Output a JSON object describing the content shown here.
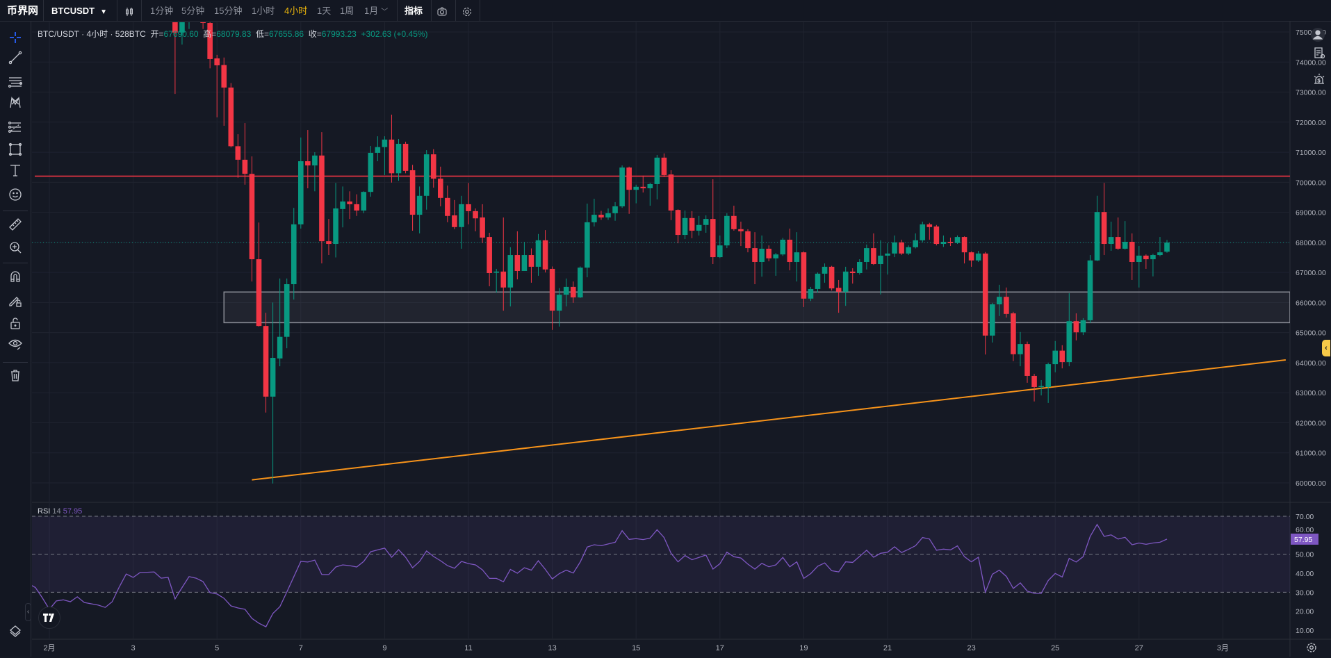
{
  "topbar": {
    "logo": "币界网",
    "symbol": "BTCUSDT",
    "intervals": [
      "1分钟",
      "5分钟",
      "15分钟",
      "1小时",
      "4小时",
      "1天",
      "1周",
      "1月"
    ],
    "active_interval": "4小时",
    "indicators_label": "指标"
  },
  "legend": {
    "title": "BTC/USDT · 4小时 · 528BTC",
    "open_label": "开=",
    "open": "67690.60",
    "high_label": "高=",
    "high": "68079.83",
    "low_label": "低=",
    "low": "67655.86",
    "close_label": "收=",
    "close": "67993.23",
    "change": "+302.63 (+0.45%)"
  },
  "rsi_legend": {
    "name": "RSI",
    "period": "14",
    "value": "57.95"
  },
  "colors": {
    "up": "#089981",
    "down": "#f23645",
    "resistance": "#c9303e",
    "trendline": "#f7931a",
    "rsi": "#7e57c2",
    "active": "#f0b90b",
    "crosshair_tool": "#2962ff"
  },
  "chart_data": {
    "type": "candlestick",
    "symbol": "BTC/USDT",
    "interval_hours": 4,
    "index_origin": "2月1日 00:00",
    "candles_start_index": 18,
    "candles_ohlc": [
      [
        75800,
        76200,
        72940,
        74980
      ],
      [
        74980,
        75900,
        74580,
        75500
      ],
      [
        75500,
        76300,
        75100,
        76000
      ],
      [
        76000,
        76500,
        75400,
        75700
      ],
      [
        75700,
        75900,
        75100,
        75300
      ],
      [
        75300,
        75500,
        73790,
        74100
      ],
      [
        74120,
        74240,
        72160,
        73890
      ],
      [
        73900,
        74150,
        71880,
        73150
      ],
      [
        73150,
        73300,
        71160,
        71200
      ],
      [
        71200,
        71600,
        70150,
        70750
      ],
      [
        70750,
        71970,
        69920,
        70280
      ],
      [
        70280,
        70860,
        66700,
        67440
      ],
      [
        67440,
        68660,
        65200,
        65220
      ],
      [
        65220,
        65660,
        62340,
        62870
      ],
      [
        62870,
        66000,
        59980,
        64160
      ],
      [
        64140,
        66800,
        63880,
        64860
      ],
      [
        64860,
        66800,
        64480,
        66610
      ],
      [
        66610,
        69150,
        66100,
        68600
      ],
      [
        68600,
        71490,
        68460,
        70700
      ],
      [
        70700,
        71740,
        69800,
        70560
      ],
      [
        70560,
        71000,
        69700,
        70890
      ],
      [
        70890,
        71670,
        67300,
        68040
      ],
      [
        68040,
        68780,
        67580,
        67950
      ],
      [
        67950,
        69980,
        67500,
        69130
      ],
      [
        69110,
        69860,
        68500,
        69360
      ],
      [
        69360,
        69700,
        68780,
        69270
      ],
      [
        69270,
        69600,
        68880,
        69060
      ],
      [
        69060,
        69700,
        68970,
        69680
      ],
      [
        69680,
        71210,
        69520,
        70980
      ],
      [
        70980,
        71530,
        70700,
        71170
      ],
      [
        71170,
        71530,
        70240,
        71420
      ],
      [
        71420,
        72250,
        69990,
        70300
      ],
      [
        70300,
        71440,
        70050,
        71280
      ],
      [
        71280,
        71350,
        70300,
        70380
      ],
      [
        70400,
        70580,
        68390,
        68920
      ],
      [
        68920,
        69860,
        68300,
        69550
      ],
      [
        69550,
        71070,
        69090,
        70930
      ],
      [
        70930,
        71100,
        69820,
        70120
      ],
      [
        70120,
        70520,
        69200,
        69480
      ],
      [
        69480,
        69890,
        68670,
        68880
      ],
      [
        68900,
        69410,
        68440,
        68510
      ],
      [
        68510,
        69550,
        67790,
        69270
      ],
      [
        69270,
        69980,
        68600,
        69040
      ],
      [
        69040,
        69130,
        68370,
        68800
      ],
      [
        68830,
        69270,
        67980,
        68160
      ],
      [
        68180,
        68320,
        66540,
        66980
      ],
      [
        66990,
        67120,
        66330,
        67030
      ],
      [
        67030,
        68830,
        65730,
        66500
      ],
      [
        66500,
        67840,
        65870,
        67580
      ],
      [
        67580,
        68370,
        66770,
        67050
      ],
      [
        67050,
        68020,
        67050,
        67580
      ],
      [
        67580,
        67800,
        66660,
        67190
      ],
      [
        67190,
        68280,
        66890,
        68070
      ],
      [
        68070,
        68410,
        67000,
        67100
      ],
      [
        67120,
        67200,
        65090,
        65730
      ],
      [
        65730,
        66480,
        65200,
        66260
      ],
      [
        66260,
        66800,
        65870,
        66520
      ],
      [
        66520,
        66700,
        65990,
        66170
      ],
      [
        66170,
        67200,
        66150,
        67160
      ],
      [
        67160,
        69290,
        66840,
        68670
      ],
      [
        68670,
        69450,
        68530,
        68920
      ],
      [
        68920,
        69050,
        68750,
        68830
      ],
      [
        68830,
        69130,
        68750,
        68970
      ],
      [
        68970,
        69340,
        68720,
        69200
      ],
      [
        69200,
        70560,
        69150,
        70490
      ],
      [
        70490,
        70520,
        68950,
        69750
      ],
      [
        69750,
        69920,
        69300,
        69850
      ],
      [
        69850,
        70220,
        69660,
        69800
      ],
      [
        69800,
        69985,
        69220,
        69940
      ],
      [
        69940,
        70910,
        69430,
        70820
      ],
      [
        70820,
        70960,
        70170,
        70240
      ],
      [
        70260,
        70400,
        68740,
        69060
      ],
      [
        69080,
        69100,
        67970,
        68250
      ],
      [
        68250,
        69060,
        68110,
        68810
      ],
      [
        68810,
        69040,
        68140,
        68390
      ],
      [
        68390,
        68880,
        68230,
        68580
      ],
      [
        68580,
        68900,
        68320,
        68780
      ],
      [
        68780,
        70100,
        67280,
        67510
      ],
      [
        67510,
        68230,
        67480,
        67900
      ],
      [
        67900,
        68970,
        67810,
        68880
      ],
      [
        68880,
        69220,
        68390,
        68440
      ],
      [
        68440,
        68690,
        67880,
        68370
      ],
      [
        68370,
        68440,
        67670,
        67810
      ],
      [
        67810,
        68340,
        66610,
        67350
      ],
      [
        67350,
        68230,
        66860,
        67790
      ],
      [
        67790,
        67900,
        67370,
        67470
      ],
      [
        67470,
        67650,
        66890,
        67600
      ],
      [
        67600,
        68150,
        67550,
        68090
      ],
      [
        68090,
        68460,
        67070,
        67350
      ],
      [
        67350,
        68340,
        66700,
        67670
      ],
      [
        67670,
        67700,
        65850,
        66130
      ],
      [
        66130,
        66520,
        66050,
        66450
      ],
      [
        66450,
        67000,
        66330,
        66960
      ],
      [
        66960,
        67300,
        66660,
        67190
      ],
      [
        67190,
        67220,
        66400,
        66470
      ],
      [
        66490,
        66750,
        65660,
        66360
      ],
      [
        66360,
        67190,
        65890,
        67030
      ],
      [
        67030,
        67140,
        66630,
        66980
      ],
      [
        66980,
        67440,
        66930,
        67350
      ],
      [
        67350,
        67930,
        67100,
        67810
      ],
      [
        67810,
        68300,
        67250,
        67280
      ],
      [
        67280,
        68070,
        66270,
        67560
      ],
      [
        67560,
        67970,
        66930,
        67630
      ],
      [
        67630,
        68230,
        67510,
        68000
      ],
      [
        68000,
        68090,
        67580,
        67630
      ],
      [
        67630,
        67900,
        67580,
        67840
      ],
      [
        67840,
        68300,
        67800,
        68070
      ],
      [
        68070,
        68690,
        68000,
        68600
      ],
      [
        68600,
        68650,
        68090,
        68510
      ],
      [
        68530,
        68580,
        67900,
        67950
      ],
      [
        67950,
        68230,
        67850,
        68020
      ],
      [
        68020,
        68160,
        67880,
        67980
      ],
      [
        67980,
        68230,
        67950,
        68180
      ],
      [
        68180,
        68200,
        67300,
        67670
      ],
      [
        67670,
        67700,
        67190,
        67400
      ],
      [
        67400,
        67720,
        67350,
        67630
      ],
      [
        67630,
        67680,
        64270,
        64900
      ],
      [
        64900,
        65990,
        64670,
        65940
      ],
      [
        65940,
        66590,
        65550,
        66190
      ],
      [
        66190,
        66500,
        65500,
        65620
      ],
      [
        65640,
        65690,
        64050,
        64280
      ],
      [
        64280,
        65020,
        63880,
        64620
      ],
      [
        64620,
        64700,
        63330,
        63560
      ],
      [
        63560,
        63630,
        62710,
        63190
      ],
      [
        63190,
        63420,
        62910,
        63220
      ],
      [
        63190,
        64000,
        62660,
        63950
      ],
      [
        63950,
        64720,
        63680,
        64400
      ],
      [
        64400,
        64580,
        63810,
        64020
      ],
      [
        64020,
        66310,
        63880,
        65380
      ],
      [
        65380,
        65640,
        64740,
        65010
      ],
      [
        65010,
        65480,
        64920,
        65410
      ],
      [
        65410,
        67580,
        65320,
        67400
      ],
      [
        67400,
        69550,
        67380,
        69010
      ],
      [
        69010,
        69980,
        67580,
        67950
      ],
      [
        67950,
        68690,
        67720,
        68180
      ],
      [
        68180,
        68830,
        67750,
        67790
      ],
      [
        67790,
        68710,
        67760,
        68020
      ],
      [
        68020,
        68300,
        66750,
        67350
      ],
      [
        67350,
        67880,
        66500,
        67560
      ],
      [
        67560,
        67600,
        67120,
        67440
      ],
      [
        67440,
        67620,
        66870,
        67580
      ],
      [
        67580,
        68180,
        67540,
        67670
      ],
      [
        67690.6,
        68079.83,
        67655.86,
        67993.23
      ]
    ],
    "last_price": 67993.23,
    "price_axis": {
      "min": 60000,
      "max": 75000,
      "step": 1000,
      "labels": [
        "75000.00",
        "74000.00",
        "73000.00",
        "72000.00",
        "71000.00",
        "70000.00",
        "69000.00",
        "68000.00",
        "67000.00",
        "66000.00",
        "65000.00",
        "64000.00",
        "63000.00",
        "62000.00",
        "61000.00",
        "60000.00"
      ]
    },
    "date_axis": {
      "labels": [
        "2月",
        "3",
        "5",
        "7",
        "9",
        "11",
        "13",
        "15",
        "17",
        "19",
        "21",
        "23",
        "25",
        "27",
        "3月"
      ],
      "label_indices": [
        0,
        12,
        24,
        36,
        48,
        60,
        72,
        84,
        96,
        108,
        120,
        132,
        144,
        156,
        168
      ]
    },
    "drawings": {
      "resistance_price": 70200,
      "zone": {
        "top": 66350,
        "bottom": 65330,
        "start_index": 25
      },
      "trendline": [
        [
          29,
          60100
        ],
        [
          177,
          64090
        ]
      ]
    },
    "rsi": {
      "period": 14,
      "start_index": -3,
      "values": [
        34.5,
        32.5,
        27,
        21,
        25.4,
        26,
        25,
        27.6,
        24.6,
        23.9,
        23.2,
        22,
        25,
        32.7,
        39.6,
        37.8,
        40.4,
        40.5,
        40.7,
        37.4,
        37.8,
        26.5,
        32.5,
        38.2,
        37.4,
        35.6,
        29.8,
        29.1,
        26.8,
        22.8,
        21.7,
        21,
        16.2,
        13.7,
        11.8,
        18.8,
        22.4,
        30.1,
        38.2,
        46.2,
        45.9,
        46.9,
        39.3,
        39.3,
        43.3,
        44.4,
        44,
        43.3,
        46.2,
        51.3,
        52.3,
        53.2,
        48.4,
        52.4,
        48.4,
        42.9,
        46.2,
        51.7,
        48.8,
        46.6,
        44,
        42.6,
        46.2,
        45.1,
        44.4,
        41.8,
        37.3,
        37.3,
        35.5,
        42,
        40,
        42.9,
        41.6,
        46.6,
        42,
        37,
        39.8,
        41.6,
        40.1,
        45.9,
        53.8,
        55,
        54.5,
        55.4,
        56.3,
        62.4,
        57.8,
        58.2,
        57.7,
        58.5,
        62.9,
        58.8,
        50.5,
        46,
        49.3,
        47.1,
        48.3,
        49.6,
        42.2,
        45,
        51.1,
        48.7,
        48,
        44.8,
        42.2,
        45.2,
        43.4,
        44.4,
        48.3,
        43.4,
        46,
        37.3,
        39.8,
        43.7,
        45.4,
        41.3,
        40.7,
        46,
        45.7,
        48.9,
        52.1,
        48.4,
        50.5,
        51.1,
        53.9,
        50.9,
        52.6,
        54.5,
        58.8,
        58,
        52.1,
        52.7,
        52.3,
        54.4,
        48.7,
        46,
        48.4,
        30,
        39.5,
        41.6,
        38.3,
        32,
        34.9,
        30.6,
        29.4,
        29.4,
        36.2,
        39.9,
        38,
        47.8,
        45.9,
        48.7,
        59.4,
        65.7,
        59.4,
        60.2,
        58,
        58.9,
        55,
        55.9,
        55.2,
        55.9,
        56.3,
        57.95
      ],
      "bands": [
        70,
        50,
        30
      ],
      "axis_labels": [
        "70.00",
        "60.00",
        "50.00",
        "40.00",
        "30.00",
        "20.00",
        "10.00"
      ],
      "axis_values": [
        70,
        60,
        50,
        40,
        30,
        20,
        10
      ],
      "current_label": "57.95"
    }
  }
}
